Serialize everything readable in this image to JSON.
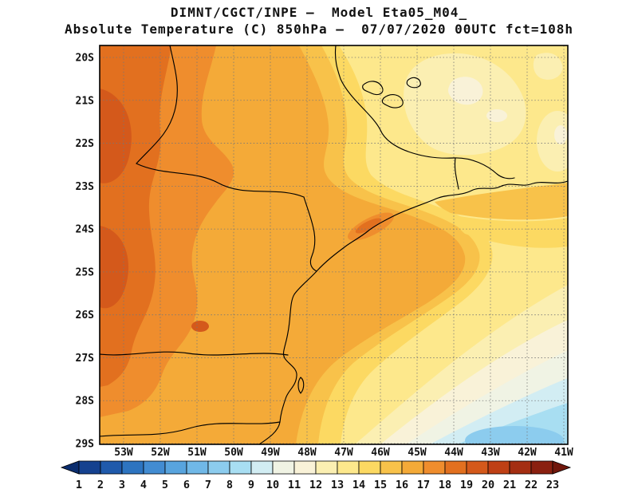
{
  "header": {
    "line1": "DIMNT/CGCT/INPE —  Model Eta05_M04_",
    "line2": "Absolute Temperature (C) 850hPa —  07/07/2020 00UTC fct=108h"
  },
  "axes": {
    "lat": [
      "20S",
      "21S",
      "22S",
      "23S",
      "24S",
      "25S",
      "26S",
      "27S",
      "28S",
      "29S"
    ],
    "lon": [
      "53W",
      "52W",
      "51W",
      "50W",
      "49W",
      "48W",
      "47W",
      "46W",
      "45W",
      "44W",
      "43W",
      "42W",
      "41W"
    ]
  },
  "colorbar": {
    "tick_labels": [
      "1",
      "2",
      "3",
      "4",
      "5",
      "6",
      "7",
      "8",
      "9",
      "10",
      "11",
      "12",
      "13",
      "14",
      "15",
      "16",
      "17",
      "18",
      "19",
      "20",
      "21",
      "22",
      "23"
    ],
    "segment_colors": [
      "#0b2d6e",
      "#15418f",
      "#1f5aab",
      "#2d74c0",
      "#428cd2",
      "#58a4de",
      "#70b8e7",
      "#8cccee",
      "#a8def2",
      "#d2edf3",
      "#f0f3e4",
      "#f9f2d8",
      "#fbefb2",
      "#fde88c",
      "#fcd962",
      "#f8c24a",
      "#f4aa38",
      "#ef8d2d",
      "#e2701f",
      "#d4591b",
      "#bf4015",
      "#a42e12",
      "#8a2010",
      "#70170c"
    ]
  },
  "chart_data": {
    "type": "heatmap",
    "title": "Absolute Temperature (C) 850hPa",
    "institution": "DIMNT/CGCT/INPE",
    "model": "Eta05_M04_",
    "valid_time": "07/07/2020 00UTC",
    "forecast": "fct=108h",
    "unit": "C",
    "lat_range": [
      "20S",
      "29S"
    ],
    "lon_range": [
      "53W",
      "41W"
    ],
    "scale_min": 1,
    "scale_max": 23,
    "contour_interval": 1,
    "regions": [
      {
        "area": "far west edge blobs (53W, 21S-23S and 24S-26S)",
        "temp_c": "19-20"
      },
      {
        "area": "northwest interior (53W-51W, 20S-27S)",
        "temp_c": "18-19"
      },
      {
        "area": "west-central band (52W-49W)",
        "temp_c": "17-18"
      },
      {
        "area": "broad central band down to Sao Paulo coast (50W-46W)",
        "temp_c": "16-17"
      },
      {
        "area": "dark warm streak along coast near 46.5W, 24S",
        "temp_c": "17-19"
      },
      {
        "area": "north-central to northeast band (48W-46W)",
        "temp_c": "14-16"
      },
      {
        "area": "northeast interior (46W-41W, 20S-23S)",
        "temp_c": "13-14"
      },
      {
        "area": "pale patches far northeast (45W-43W, 20.5S-22.5S)",
        "temp_c": "11-13"
      },
      {
        "area": "offshore southeast gradient bands toward ocean",
        "temp_c": "15 decreasing to 9"
      },
      {
        "area": "far southeast ocean corner (44W-41W, 28S-29S)",
        "temp_c": "7-9"
      }
    ]
  }
}
